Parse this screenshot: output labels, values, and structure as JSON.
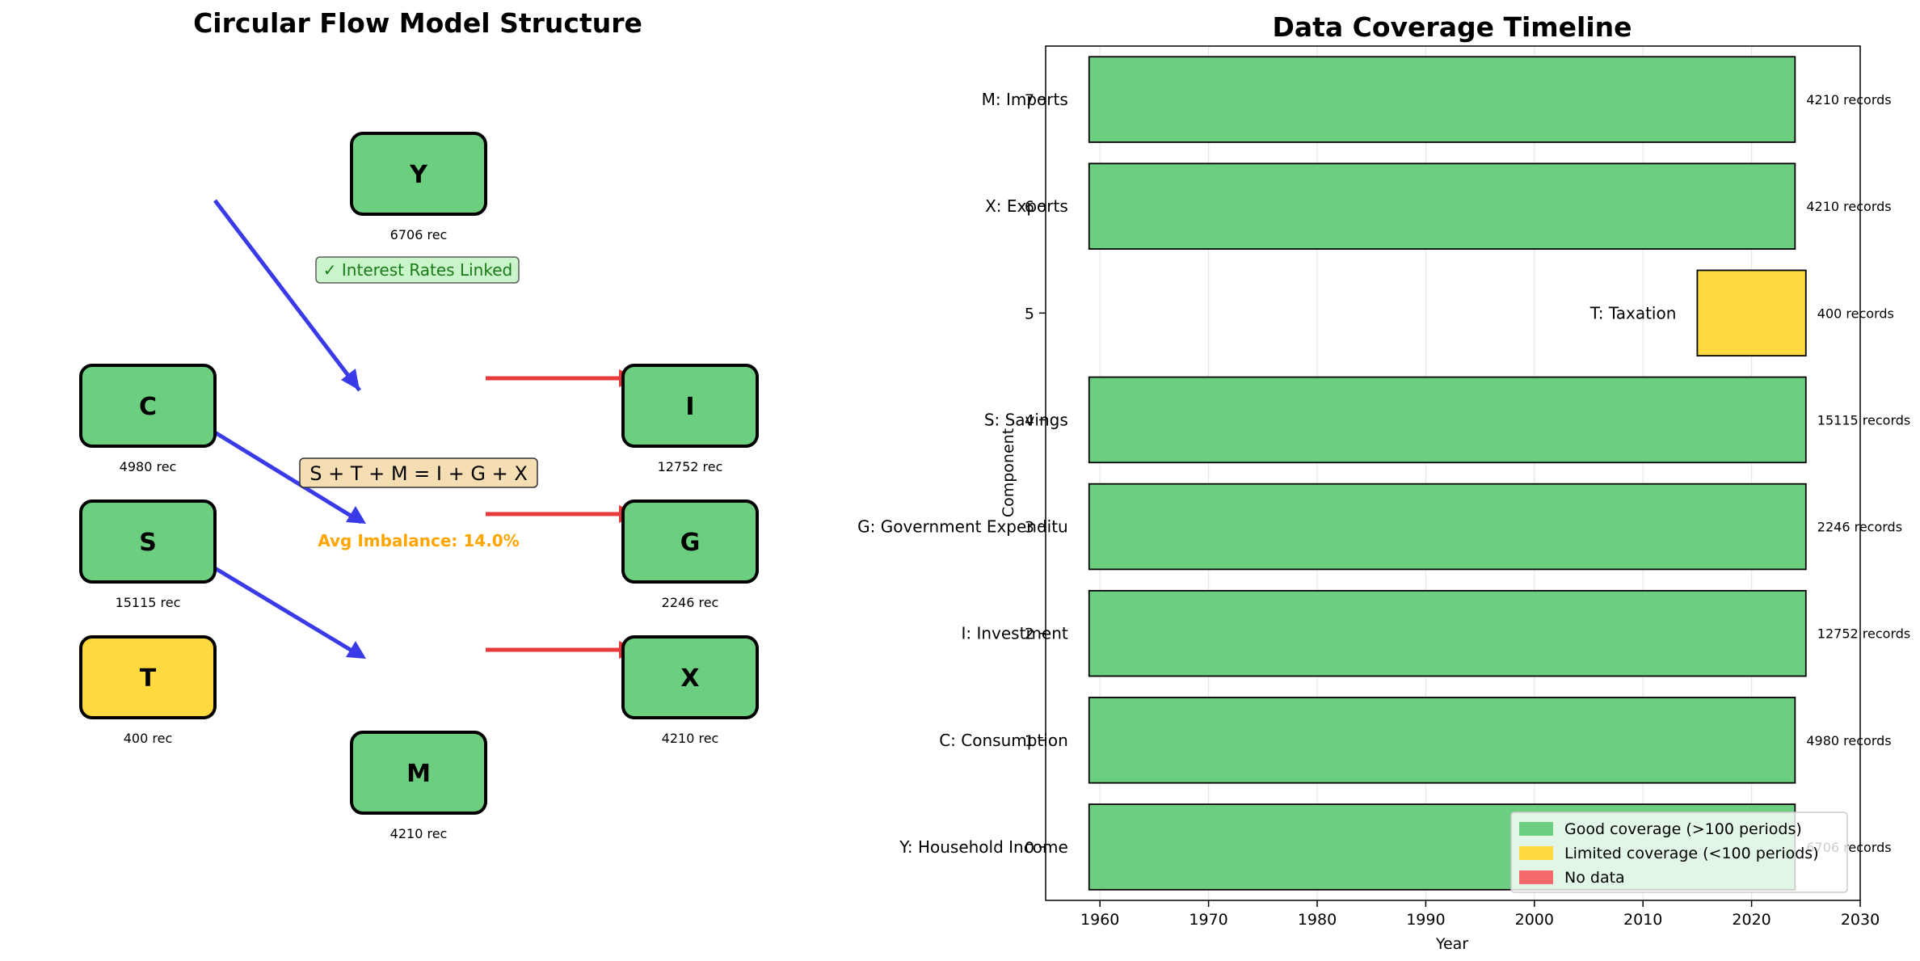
{
  "flow": {
    "title": "Circular Flow Model Structure",
    "nodes": [
      {
        "id": "Y",
        "label": "Y",
        "records": "6706 rec",
        "status": "good"
      },
      {
        "id": "C",
        "label": "C",
        "records": "4980 rec",
        "status": "good"
      },
      {
        "id": "S",
        "label": "S",
        "records": "15115 rec",
        "status": "good"
      },
      {
        "id": "T",
        "label": "T",
        "records": "400 rec",
        "status": "limited"
      },
      {
        "id": "I",
        "label": "I",
        "records": "12752 rec",
        "status": "good"
      },
      {
        "id": "G",
        "label": "G",
        "records": "2246 rec",
        "status": "good"
      },
      {
        "id": "X",
        "label": "X",
        "records": "4210 rec",
        "status": "good"
      },
      {
        "id": "M",
        "label": "M",
        "records": "4210 rec",
        "status": "good"
      }
    ],
    "interest_note": "✓ Interest Rates Linked",
    "equation": "S + T + M = I + G + X",
    "imbalance": "Avg Imbalance: 14.0%",
    "colors": {
      "good": "#6ccf80",
      "limited": "#ffd93d",
      "inflow_arrow": "#3a3ae8",
      "outflow_arrow": "#e83a3a",
      "imbalance_text": "#ffa500"
    }
  },
  "chart_data": {
    "type": "bar",
    "orientation": "horizontal-range",
    "title": "Data Coverage Timeline",
    "xlabel": "Year",
    "ylabel": "Component",
    "xlim": [
      1955,
      2030
    ],
    "ylim": [
      -0.5,
      7.5
    ],
    "xticks": [
      1960,
      1970,
      1980,
      1990,
      2000,
      2010,
      2020,
      2030
    ],
    "yticks": [
      0,
      1,
      2,
      3,
      4,
      5,
      6,
      7
    ],
    "grid": "x",
    "bars": [
      {
        "y": 0,
        "name": "Y: Household Income",
        "start": 1959,
        "end": 2024,
        "records": "6706 records",
        "coverage": "good"
      },
      {
        "y": 1,
        "name": "C: Consumption",
        "start": 1959,
        "end": 2024,
        "records": "4980 records",
        "coverage": "good"
      },
      {
        "y": 2,
        "name": "I: Investment",
        "start": 1959,
        "end": 2025,
        "records": "12752 records",
        "coverage": "good"
      },
      {
        "y": 3,
        "name": "G: Government Expenditu",
        "start": 1959,
        "end": 2025,
        "records": "2246 records",
        "coverage": "good"
      },
      {
        "y": 4,
        "name": "S: Savings",
        "start": 1959,
        "end": 2025,
        "records": "15115 records",
        "coverage": "good"
      },
      {
        "y": 5,
        "name": "T: Taxation",
        "start": 2015,
        "end": 2025,
        "records": "400 records",
        "coverage": "limited"
      },
      {
        "y": 6,
        "name": "X: Exports",
        "start": 1959,
        "end": 2024,
        "records": "4210 records",
        "coverage": "good"
      },
      {
        "y": 7,
        "name": "M: Imports",
        "start": 1959,
        "end": 2024,
        "records": "4210 records",
        "coverage": "good"
      }
    ],
    "legend": {
      "position": "lower-right",
      "items": [
        {
          "label": "Good coverage (>100 periods)",
          "color": "#6ccf80"
        },
        {
          "label": "Limited coverage (<100 periods)",
          "color": "#ffd93d"
        },
        {
          "label": "No data",
          "color": "#f56b6b"
        }
      ]
    }
  }
}
